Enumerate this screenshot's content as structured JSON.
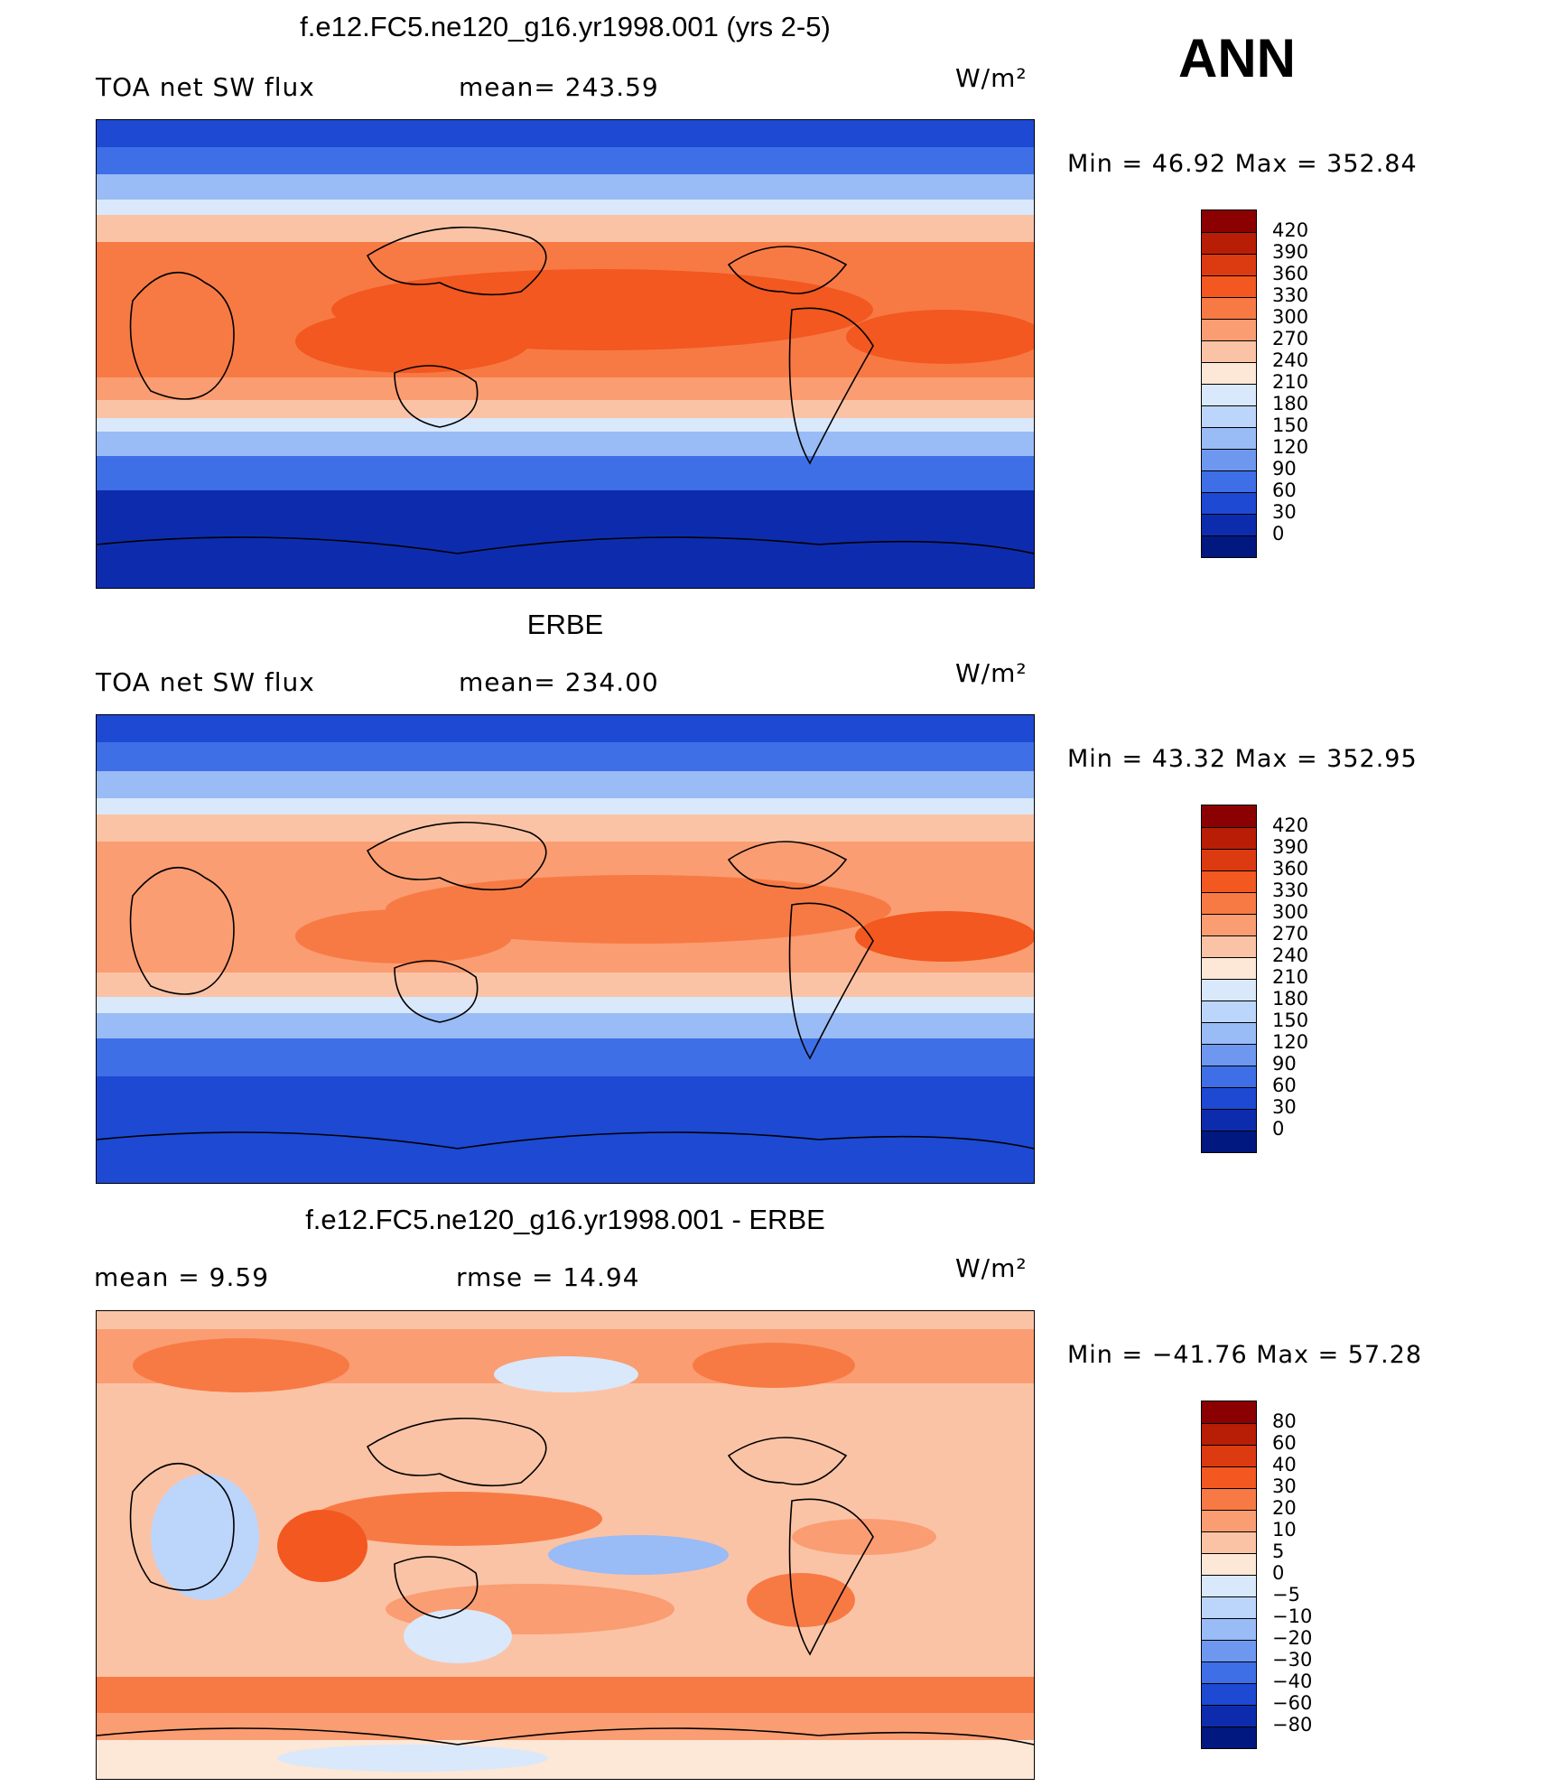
{
  "season": "ANN",
  "panels": [
    {
      "title": "f.e12.FC5.ne120_g16.yr1998.001 (yrs 2-5)",
      "left_label": "TOA net SW flux",
      "mid_label": "mean= 243.59",
      "units": "W/m²",
      "minmax": "Min =   46.92 Max = 352.84"
    },
    {
      "title": "ERBE",
      "left_label": "TOA net SW flux",
      "mid_label": "mean= 234.00",
      "units": "W/m²",
      "minmax": "Min =   43.32 Max = 352.95"
    },
    {
      "title": "f.e12.FC5.ne120_g16.yr1998.001 - ERBE",
      "left_label": "mean =     9.59",
      "mid_label": "rmse =    14.94",
      "units": "W/m²",
      "minmax": "Min = −41.76 Max =   57.28"
    }
  ],
  "legend_abs": {
    "ticks": [
      "420",
      "390",
      "360",
      "330",
      "300",
      "270",
      "240",
      "210",
      "180",
      "150",
      "120",
      "90",
      "60",
      "30",
      "0"
    ],
    "colors": [
      "#8b0000",
      "#b81e05",
      "#dc3a10",
      "#f2581f",
      "#f77a45",
      "#fa9d72",
      "#fbc3a5",
      "#fde7d6",
      "#d9e8fb",
      "#bcd5fb",
      "#99bbf6",
      "#6e98f0",
      "#3f6fe6",
      "#1d49d3",
      "#0d2cad",
      "#001880"
    ]
  },
  "legend_diff": {
    "ticks": [
      "80",
      "60",
      "40",
      "30",
      "20",
      "10",
      "5",
      "0",
      "−5",
      "−10",
      "−20",
      "−30",
      "−40",
      "−60",
      "−80"
    ],
    "colors": [
      "#8b0000",
      "#b81e05",
      "#dc3a10",
      "#f2581f",
      "#f77a45",
      "#fa9d72",
      "#fbc3a5",
      "#fde7d6",
      "#d9e8fb",
      "#bcd5fb",
      "#99bbf6",
      "#6e98f0",
      "#3f6fe6",
      "#1d49d3",
      "#0d2cad",
      "#001880"
    ]
  }
}
